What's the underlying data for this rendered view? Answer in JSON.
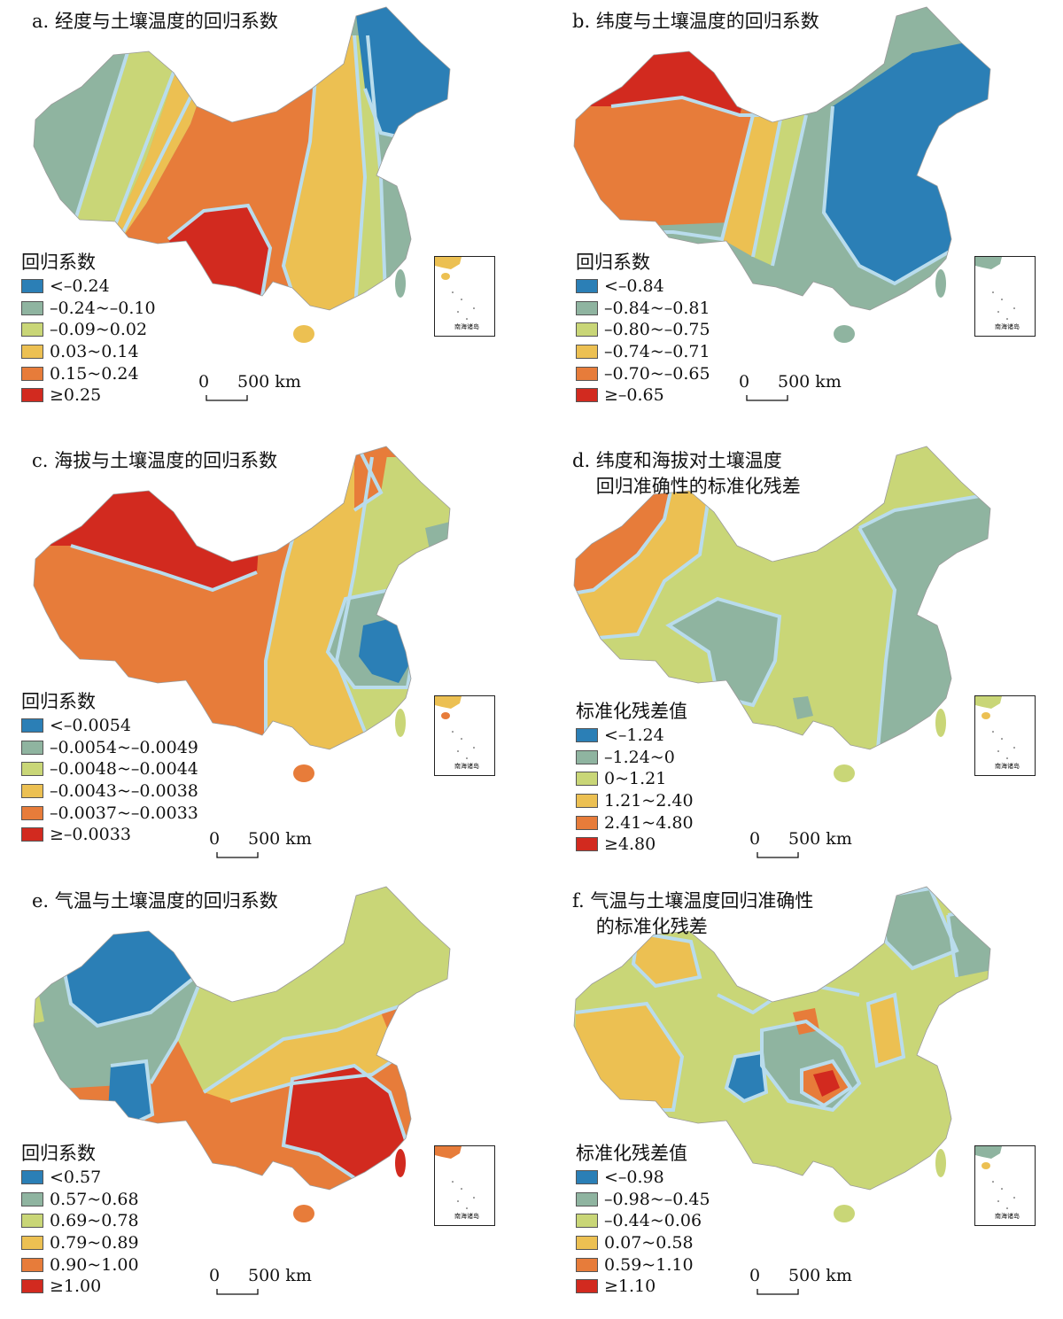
{
  "colors": {
    "c1": "#2b7fb6",
    "c2": "#8fb4a0",
    "c3": "#c9d677",
    "c4": "#ecc052",
    "c5": "#e77c3a",
    "c6": "#d22a1f",
    "boundary": "#b9dcec"
  },
  "scale_bar": {
    "zero": "0",
    "label": "500 km"
  },
  "inset_label": "南海诸岛",
  "panels": [
    {
      "title": "a. 经度与土壤温度的回归系数",
      "legend_title": "回归系数",
      "legend": [
        "<–0.24",
        "–0.24~–0.10",
        "–0.09~0.02",
        "0.03~0.14",
        "0.15~0.24",
        "≥0.25"
      ]
    },
    {
      "title": "b. 纬度与土壤温度的回归系数",
      "legend_title": "回归系数",
      "legend": [
        "<–0.84",
        "–0.84~–0.81",
        "–0.80~–0.75",
        "–0.74~–0.71",
        "–0.70~–0.65",
        "≥–0.65"
      ]
    },
    {
      "title": "c. 海拔与土壤温度的回归系数",
      "legend_title": "回归系数",
      "legend": [
        "<–0.0054",
        "–0.0054~–0.0049",
        "–0.0048~–0.0044",
        "–0.0043~–0.0038",
        "–0.0037~–0.0033",
        "≥–0.0033"
      ]
    },
    {
      "title": "d. 纬度和海拔对土壤温度\n    回归准确性的标准化残差",
      "legend_title": "标准化残差值",
      "legend": [
        "<–1.24",
        "–1.24~0",
        "0~1.21",
        "1.21~2.40",
        "2.41~4.80",
        "≥4.80"
      ]
    },
    {
      "title": "e. 气温与土壤温度的回归系数",
      "legend_title": "回归系数",
      "legend": [
        "<0.57",
        "0.57~0.68",
        "0.69~0.78",
        "0.79~0.89",
        "0.90~1.00",
        "≥1.00"
      ]
    },
    {
      "title": "f. 气温与土壤温度回归准确性\n    的标准化残差",
      "legend_title": "标准化残差值",
      "legend": [
        "<–0.98",
        "–0.98~–0.45",
        "–0.44~0.06",
        "0.07~0.58",
        "0.59~1.10",
        "≥1.10"
      ]
    }
  ]
}
